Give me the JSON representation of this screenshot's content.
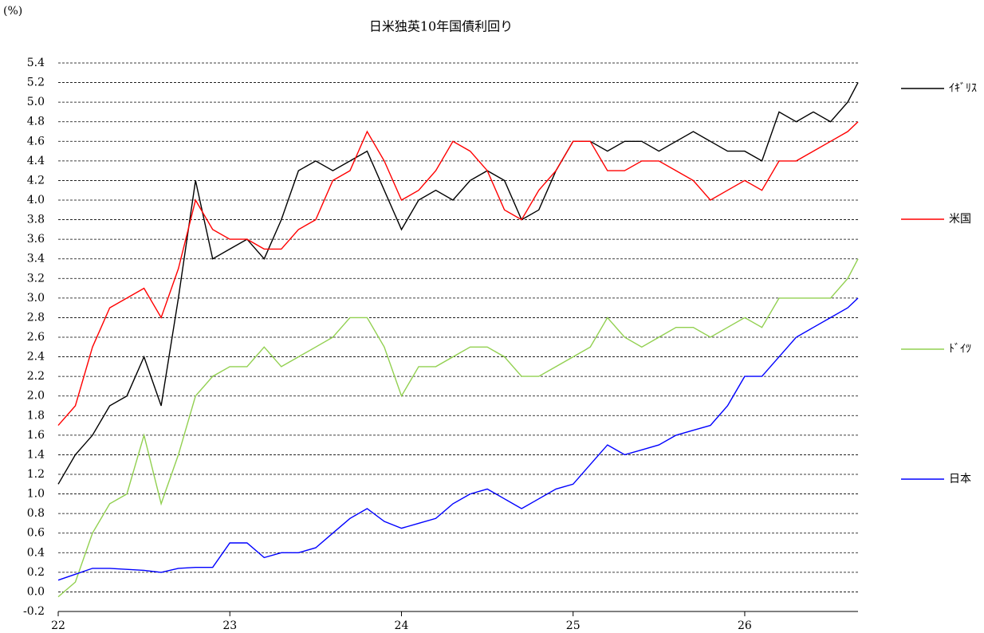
{
  "chart_data": {
    "type": "line",
    "title": "日米独英10年国債利回り",
    "y_label": "(%)",
    "x": [
      22.0,
      22.1,
      22.2,
      22.3,
      22.4,
      22.5,
      22.6,
      22.7,
      22.8,
      22.9,
      23.0,
      23.1,
      23.2,
      23.3,
      23.4,
      23.5,
      23.6,
      23.7,
      23.8,
      23.9,
      24.0,
      24.1,
      24.2,
      24.3,
      24.4,
      24.5,
      24.6,
      24.7,
      24.8,
      24.9,
      25.0,
      25.1,
      25.2,
      25.3,
      25.4,
      25.5,
      25.6,
      25.7,
      25.8,
      25.9,
      26.0,
      26.1,
      26.2,
      26.3,
      26.4,
      26.5,
      26.6,
      26.66
    ],
    "xlim": [
      22,
      26.66
    ],
    "xticks": [
      22,
      23,
      24,
      25,
      26
    ],
    "ylim": [
      -0.2,
      5.4
    ],
    "yticks": [
      -0.2,
      {
        "value": 0,
        "label": "0.0"
      },
      0.2,
      0.4,
      0.6,
      0.8,
      {
        "value": 1,
        "label": "1.0"
      },
      1.2,
      1.4,
      1.6,
      1.8,
      {
        "value": 2,
        "label": "2.0"
      },
      2.2,
      2.4,
      2.6,
      2.8,
      {
        "value": 3,
        "label": "3.0"
      },
      3.2,
      3.4,
      3.6,
      3.8,
      {
        "value": 4,
        "label": "4.0"
      },
      4.2,
      4.4,
      4.6,
      4.8,
      {
        "value": 5,
        "label": "5.0"
      },
      5.2,
      5.4
    ],
    "grid": true,
    "legend": "right",
    "series": [
      {
        "name": "ｲｷﾞﾘｽ",
        "color": "#000000",
        "values": [
          1.1,
          1.4,
          1.6,
          1.9,
          2.0,
          2.4,
          1.9,
          3.0,
          4.2,
          3.4,
          3.5,
          3.6,
          3.4,
          3.8,
          4.3,
          4.4,
          4.3,
          4.4,
          4.5,
          4.1,
          3.7,
          4.0,
          4.1,
          4.0,
          4.2,
          4.3,
          4.2,
          3.8,
          3.9,
          4.3,
          4.6,
          4.6,
          4.5,
          4.6,
          4.6,
          4.5,
          4.6,
          4.7,
          4.6,
          4.5,
          4.5,
          4.4,
          4.9,
          4.8,
          4.9,
          4.8,
          5.0,
          5.2
        ]
      },
      {
        "name": "米国",
        "color": "#ff0000",
        "values": [
          1.7,
          1.9,
          2.5,
          2.9,
          3.0,
          3.1,
          2.8,
          3.3,
          4.0,
          3.7,
          3.6,
          3.6,
          3.5,
          3.5,
          3.7,
          3.8,
          4.2,
          4.3,
          4.7,
          4.4,
          4.0,
          4.1,
          4.3,
          4.6,
          4.5,
          4.3,
          3.9,
          3.8,
          4.1,
          4.3,
          4.6,
          4.6,
          4.3,
          4.3,
          4.4,
          4.4,
          4.3,
          4.2,
          4.0,
          4.1,
          4.2,
          4.1,
          4.4,
          4.4,
          4.5,
          4.6,
          4.7,
          4.8
        ]
      },
      {
        "name": "ﾄﾞｲﾂ",
        "color": "#92d050",
        "values": [
          -0.05,
          0.1,
          0.6,
          0.9,
          1.0,
          1.6,
          0.9,
          1.4,
          2.0,
          2.2,
          2.3,
          2.3,
          2.5,
          2.3,
          2.4,
          2.5,
          2.6,
          2.8,
          2.8,
          2.5,
          2.0,
          2.3,
          2.3,
          2.4,
          2.5,
          2.5,
          2.4,
          2.2,
          2.2,
          2.3,
          2.4,
          2.5,
          2.8,
          2.6,
          2.5,
          2.6,
          2.7,
          2.7,
          2.6,
          2.7,
          2.8,
          2.7,
          3.0,
          3.0,
          3.0,
          3.0,
          3.2,
          3.4
        ]
      },
      {
        "name": "日本",
        "color": "#0000ff",
        "values": [
          0.12,
          0.18,
          0.24,
          0.24,
          0.23,
          0.22,
          0.2,
          0.24,
          0.25,
          0.25,
          0.5,
          0.5,
          0.35,
          0.4,
          0.4,
          0.45,
          0.6,
          0.75,
          0.85,
          0.72,
          0.65,
          0.7,
          0.75,
          0.9,
          1.0,
          1.05,
          0.95,
          0.85,
          0.95,
          1.05,
          1.1,
          1.3,
          1.5,
          1.4,
          1.45,
          1.5,
          1.6,
          1.65,
          1.7,
          1.9,
          2.2,
          2.2,
          2.4,
          2.6,
          2.7,
          2.8,
          2.9,
          3.0
        ]
      }
    ]
  }
}
